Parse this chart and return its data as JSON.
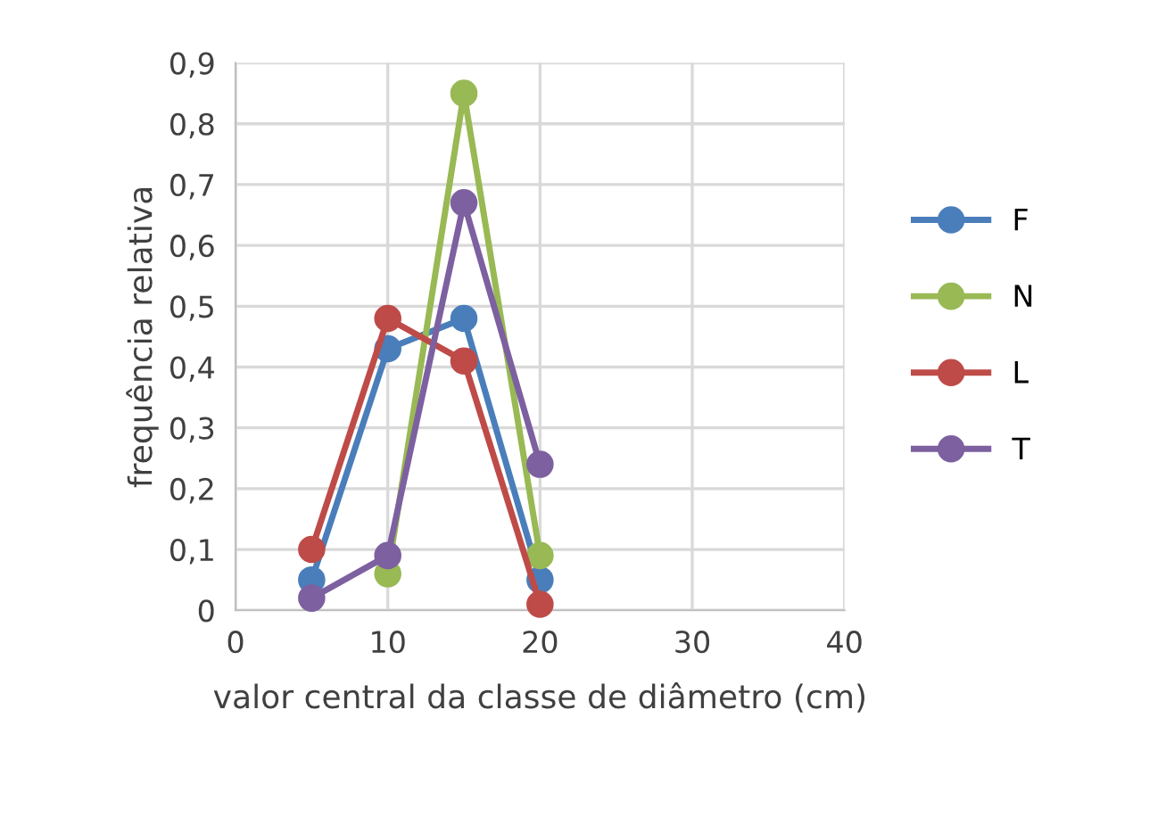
{
  "chart_data": {
    "type": "line",
    "xlabel": "valor central da classe de diâmetro (cm)",
    "ylabel": "frequência relativa",
    "x": [
      5,
      10,
      15,
      20
    ],
    "series": [
      {
        "name": "F",
        "color": "#4a7ebb",
        "values": [
          0.05,
          0.43,
          0.48,
          0.05
        ]
      },
      {
        "name": "N",
        "color": "#98b954",
        "values": [
          null,
          0.06,
          0.85,
          0.09
        ]
      },
      {
        "name": "L",
        "color": "#be4b48",
        "values": [
          0.1,
          0.48,
          0.41,
          0.01
        ]
      },
      {
        "name": "T",
        "color": "#7d60a0",
        "values": [
          0.02,
          0.09,
          0.67,
          0.24
        ]
      }
    ],
    "xlim": [
      0,
      40
    ],
    "xticks": [
      0,
      10,
      20,
      30,
      40
    ],
    "ylim": [
      0,
      0.9
    ],
    "yticks": [
      {
        "value": 0,
        "label": "0"
      },
      {
        "value": 0.1,
        "label": "0,1"
      },
      {
        "value": 0.2,
        "label": "0,2"
      },
      {
        "value": 0.3,
        "label": "0,3"
      },
      {
        "value": 0.4,
        "label": "0,4"
      },
      {
        "value": 0.5,
        "label": "0,5"
      },
      {
        "value": 0.6,
        "label": "0,6"
      },
      {
        "value": 0.7,
        "label": "0,7"
      },
      {
        "value": 0.8,
        "label": "0,8"
      },
      {
        "value": 0.9,
        "label": "0,9"
      }
    ],
    "grid": true,
    "legend": "right",
    "marker": "circle",
    "line_style": "solid"
  }
}
